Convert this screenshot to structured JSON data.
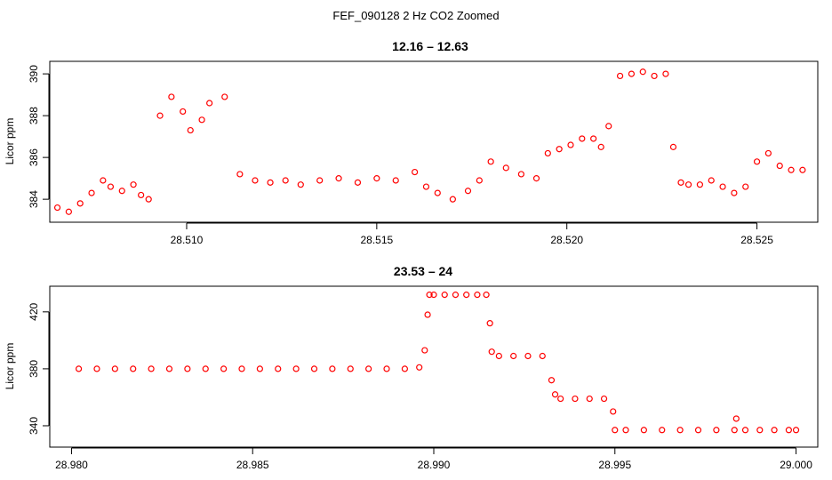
{
  "figure": {
    "suptitle": "FEF_090128  2 Hz CO2 Zoomed"
  },
  "colors": {
    "points": "#ff0000",
    "axes": "#000000",
    "background": "#ffffff"
  },
  "chart_data": [
    {
      "type": "scatter",
      "title": "12.16 – 12.63",
      "xlabel": "",
      "ylabel": "Licor ppm",
      "xlim": [
        28.5064,
        28.5266
      ],
      "ylim": [
        382.9,
        390.6
      ],
      "xticks": [
        28.51,
        28.515,
        28.52,
        28.525
      ],
      "xtick_labels": [
        "28.510",
        "28.515",
        "28.520",
        "28.525"
      ],
      "yticks": [
        384,
        386,
        388,
        390
      ],
      "ytick_labels": [
        "384",
        "386",
        "388",
        "390"
      ],
      "grid": false,
      "legend": "none",
      "series": [
        {
          "x": [
            28.5066,
            28.5069,
            28.5072,
            28.5075,
            28.5078,
            28.508,
            28.5083,
            28.5086,
            28.5088,
            28.509,
            28.5093,
            28.5096,
            28.5099,
            28.5101,
            28.5104,
            28.5106,
            28.511,
            28.5114,
            28.5118,
            28.5122,
            28.5126,
            28.513,
            28.5135,
            28.514,
            28.5145,
            28.515,
            28.5155,
            28.516,
            28.5163,
            28.5166,
            28.517,
            28.5174,
            28.5177,
            28.518,
            28.5184,
            28.5188,
            28.5192,
            28.5195,
            28.5198,
            28.5201,
            28.5204,
            28.5207,
            28.5209,
            28.5211,
            28.5214,
            28.5217,
            28.522,
            28.5223,
            28.5226,
            28.5228,
            28.523,
            28.5232,
            28.5235,
            28.5238,
            28.5241,
            28.5244,
            28.5247,
            28.525,
            28.5253,
            28.5256,
            28.5259,
            28.5262
          ],
          "y": [
            383.6,
            383.4,
            383.8,
            384.3,
            384.9,
            384.6,
            384.4,
            384.7,
            384.2,
            384.0,
            388.0,
            388.9,
            388.2,
            387.3,
            387.8,
            388.6,
            388.9,
            385.2,
            384.9,
            384.8,
            384.9,
            384.7,
            384.9,
            385.0,
            384.8,
            385.0,
            384.9,
            385.3,
            384.6,
            384.3,
            384.0,
            384.4,
            384.9,
            385.8,
            385.5,
            385.2,
            385.0,
            386.2,
            386.4,
            386.6,
            386.9,
            386.9,
            386.5,
            387.5,
            389.9,
            390.0,
            390.1,
            389.9,
            390.0,
            386.5,
            384.8,
            384.7,
            384.7,
            384.9,
            384.6,
            384.3,
            384.6,
            385.8,
            386.2,
            385.6,
            385.4,
            385.4
          ]
        }
      ]
    },
    {
      "type": "scatter",
      "title": "23.53 – 24",
      "xlabel": "",
      "ylabel": "Licor ppm",
      "xlim": [
        28.9794,
        29.0006
      ],
      "ylim": [
        325,
        438
      ],
      "xticks": [
        28.98,
        28.985,
        28.99,
        28.995,
        29.0
      ],
      "xtick_labels": [
        "28.980",
        "28.985",
        "28.990",
        "28.995",
        "29.000"
      ],
      "yticks": [
        340,
        380,
        420
      ],
      "ytick_labels": [
        "340",
        "380",
        "420"
      ],
      "grid": false,
      "legend": "none",
      "series": [
        {
          "x": [
            28.9802,
            28.9807,
            28.9812,
            28.9817,
            28.9822,
            28.9827,
            28.9832,
            28.9837,
            28.9842,
            28.9847,
            28.9852,
            28.9857,
            28.9862,
            28.9867,
            28.9872,
            28.9877,
            28.9882,
            28.9887,
            28.9892,
            28.9896,
            28.98975,
            28.98983,
            28.98988,
            28.99,
            28.9903,
            28.9906,
            28.9909,
            28.9912,
            28.99145,
            28.99155,
            28.9916,
            28.9918,
            28.9922,
            28.9926,
            28.993,
            28.99325,
            28.99335,
            28.9935,
            28.9939,
            28.9943,
            28.9947,
            28.99495,
            28.995,
            28.9953,
            28.9958,
            28.9963,
            28.9968,
            28.9973,
            28.9978,
            28.9983,
            28.99835,
            28.9986,
            28.999,
            28.9994,
            28.9998,
            29.0
          ],
          "y": [
            380,
            380,
            380,
            380,
            380,
            380,
            380,
            380,
            380,
            380,
            380,
            380,
            380,
            380,
            380,
            380,
            380,
            380,
            380,
            381,
            393,
            418,
            432,
            432,
            432,
            432,
            432,
            432,
            432,
            412,
            392,
            389,
            389,
            389,
            389,
            372,
            362,
            359,
            359,
            359,
            359,
            350,
            337,
            337,
            337,
            337,
            337,
            337,
            337,
            337,
            345,
            337,
            337,
            337,
            337,
            337
          ]
        }
      ]
    }
  ]
}
